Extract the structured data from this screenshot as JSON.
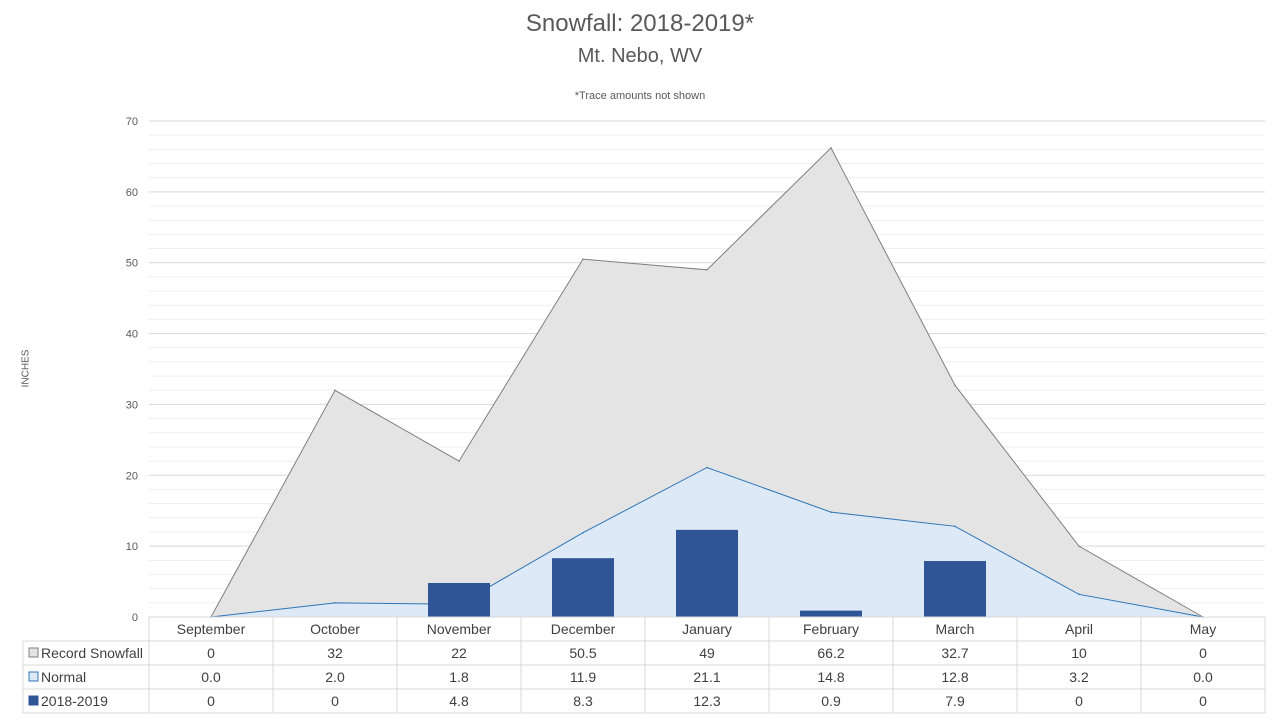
{
  "chart_data": {
    "type": "area",
    "title": "Snowfall: 2018-2019*",
    "subtitle": "Mt. Nebo, WV",
    "note": "*Trace amounts not shown",
    "ylabel": "INCHES",
    "ylim": [
      0,
      70
    ],
    "yticks": [
      0,
      10,
      20,
      30,
      40,
      50,
      60,
      70
    ],
    "categories": [
      "September",
      "October",
      "November",
      "December",
      "January",
      "February",
      "March",
      "April",
      "May"
    ],
    "series": [
      {
        "name": "Record Snowfall",
        "kind": "area",
        "color": "#e4e4e4",
        "stroke": "#7f7f7f",
        "values": [
          0,
          32,
          22,
          50.5,
          49,
          66.2,
          32.7,
          10,
          0
        ],
        "labels": [
          "0",
          "32",
          "22",
          "50.5",
          "49",
          "66.2",
          "32.7",
          "10",
          "0"
        ]
      },
      {
        "name": "Normal",
        "kind": "area",
        "color": "#dde9f6",
        "stroke": "#2e75b6",
        "values": [
          0.0,
          2.0,
          1.8,
          11.9,
          21.1,
          14.8,
          12.8,
          3.2,
          0.0
        ],
        "labels": [
          "0.0",
          "2.0",
          "1.8",
          "11.9",
          "21.1",
          "14.8",
          "12.8",
          "3.2",
          "0.0"
        ]
      },
      {
        "name": "2018-2019",
        "kind": "bar",
        "color": "#2f5597",
        "values": [
          0,
          0,
          4.8,
          8.3,
          12.3,
          0.9,
          7.9,
          0,
          0
        ],
        "labels": [
          "0",
          "0",
          "4.8",
          "8.3",
          "12.3",
          "0.9",
          "7.9",
          "0",
          "0"
        ]
      }
    ],
    "grid": true,
    "legend": "data-table"
  }
}
